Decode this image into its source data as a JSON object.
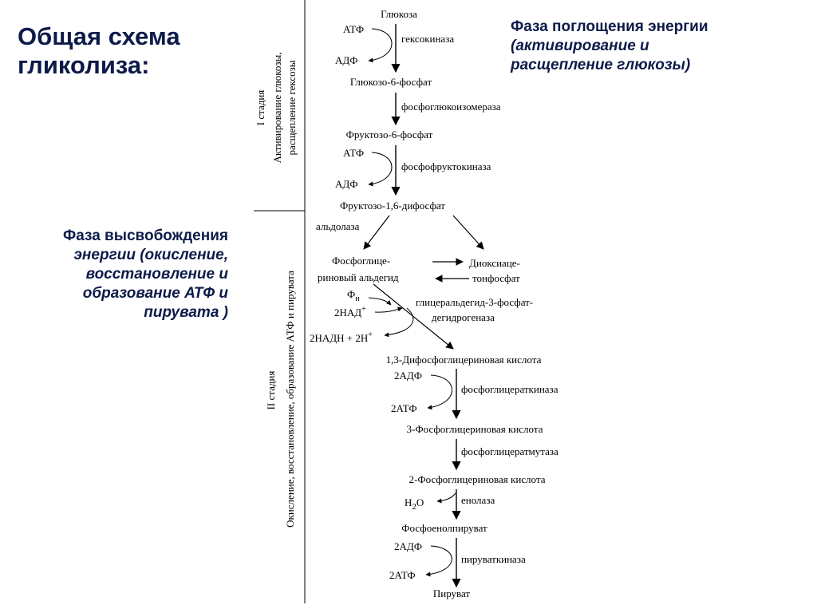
{
  "slide": {
    "title_line1": "Общая схема",
    "title_line2": "гликолиза:",
    "phase_absorb_line1": "Фаза поглощения энергии",
    "phase_absorb_line2": "(активирование и",
    "phase_absorb_line3": "расщепление глюкозы)",
    "phase_release_line1": "Фаза высвобождения",
    "phase_release_line2": "энергии (окисление,",
    "phase_release_line3": "восстановление и",
    "phase_release_line4": "образование АТФ и",
    "phase_release_line5": "пирувата )"
  },
  "stages": {
    "stage1_title": "I стадия",
    "stage1_desc_line1": "Активирование глюкозы,",
    "stage1_desc_line2": "расщепление гексозы",
    "stage2_title": "II стадия",
    "stage2_desc": "Окисление, восстановление, образование АТФ и пирувата"
  },
  "metabolites": {
    "glucose": "Глюкоза",
    "g6p": "Глюкозо-6-фосфат",
    "f6p": "Фруктозо-6-фосфат",
    "f16bp": "Фруктозо-1,6-дифосфат",
    "gap_line1": "Фосфоглице-",
    "gap_line2": "риновый альдегид",
    "dhap_line1": "Диоксиаце-",
    "dhap_line2": "тонфосфат",
    "bpg13": "1,3-Дифосфоглицериновая кислота",
    "pg3": "3-Фосфоглицериновая кислота",
    "pg2": "2-Фосфоглицериновая кислота",
    "pep": "Фосфоенолпируват",
    "pyruvate": "Пируват"
  },
  "enzymes": {
    "hexokinase": "гексокиназа",
    "phosphoglucoisomerase": "фосфоглюкоизомераза",
    "phosphofructokinase": "фосфофруктокиназа",
    "aldolase": "альдолаза",
    "gapdh_line1": "глицеральдегид-3-фосфат-",
    "gapdh_line2": "дегидрогеназа",
    "pgk": "фосфоглицераткиназа",
    "pgm": "фосфоглицератмутаза",
    "enolase": "енолаза",
    "pk": "пируваткиназа"
  },
  "cofactors": {
    "atp": "АТФ",
    "adp": "АДФ",
    "two_atp": "2АТФ",
    "two_adp": "2АДФ",
    "phi": "Ф",
    "phi_sub": "н",
    "two_nad": "2НАД",
    "plus_sup": "+",
    "two_nadh": "2НАДН + 2Н",
    "h2o_h": "Н",
    "h2o_2": "2",
    "h2o_o": "О"
  }
}
